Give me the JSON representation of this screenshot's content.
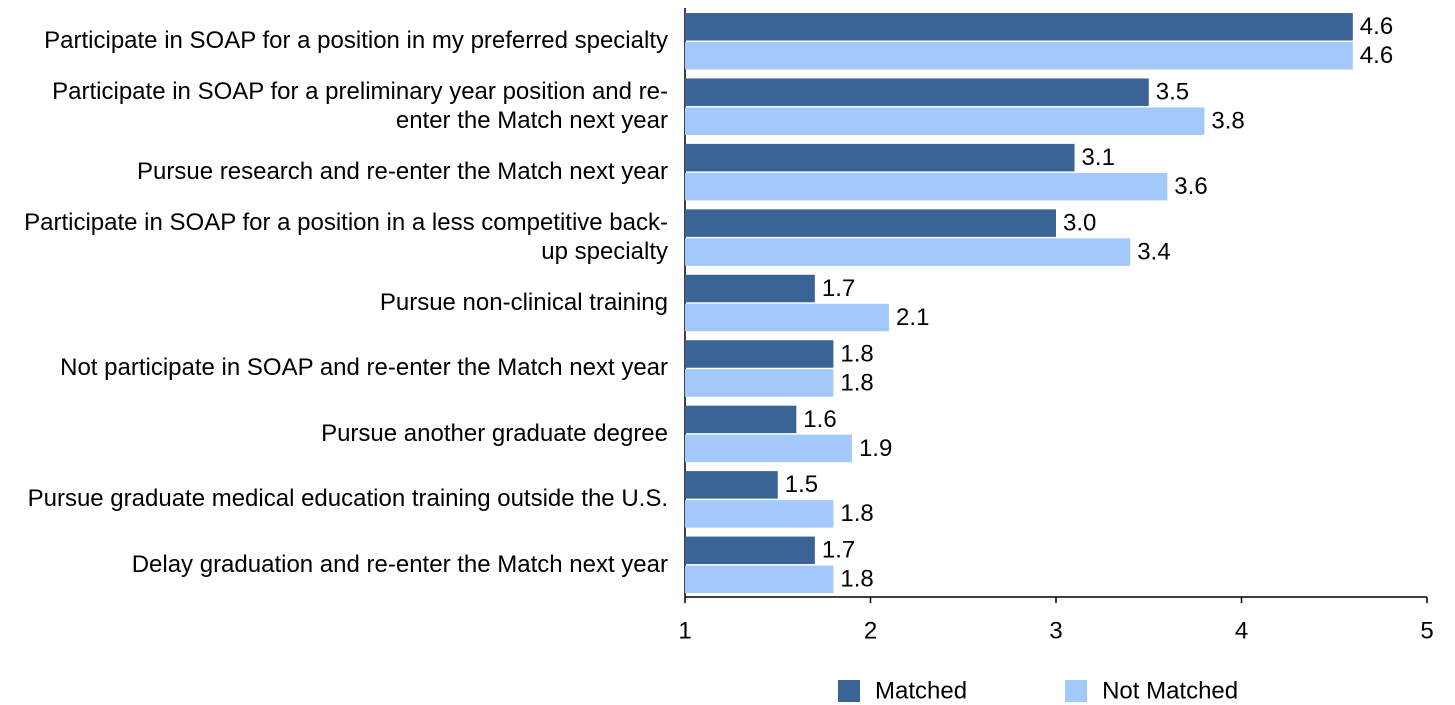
{
  "chart_data": {
    "type": "bar",
    "orientation": "horizontal",
    "categories": [
      "Participate in SOAP for a position in my preferred specialty",
      "Participate in SOAP for a preliminary year position and re-enter the Match next year",
      "Pursue research and re-enter the Match next year",
      "Participate in SOAP for a position in a less competitive back-up specialty",
      "Pursue non-clinical training",
      "Not participate in SOAP and re-enter the Match next year",
      "Pursue another graduate degree",
      "Pursue graduate medical education training outside the U.S.",
      "Delay graduation and re-enter the Match next year"
    ],
    "series": [
      {
        "name": "Matched",
        "color": "#3a6496",
        "values": [
          4.6,
          3.5,
          3.1,
          3.0,
          1.7,
          1.8,
          1.6,
          1.5,
          1.7
        ],
        "value_labels": [
          "4.6",
          "3.5",
          "3.1",
          "3.0",
          "1.7",
          "1.8",
          "1.6",
          "1.5",
          "1.7"
        ]
      },
      {
        "name": "Not Matched",
        "color": "#a3c8fa",
        "values": [
          4.6,
          3.8,
          3.6,
          3.4,
          2.1,
          1.8,
          1.9,
          1.8,
          1.8
        ],
        "value_labels": [
          "4.6",
          "3.8",
          "3.6",
          "3.4",
          "2.1",
          "1.8",
          "1.9",
          "1.8",
          "1.8"
        ]
      }
    ],
    "xlim": [
      1,
      5
    ],
    "xticks": [
      1,
      2,
      3,
      4,
      5
    ],
    "grid": false,
    "legend": "bottom"
  }
}
